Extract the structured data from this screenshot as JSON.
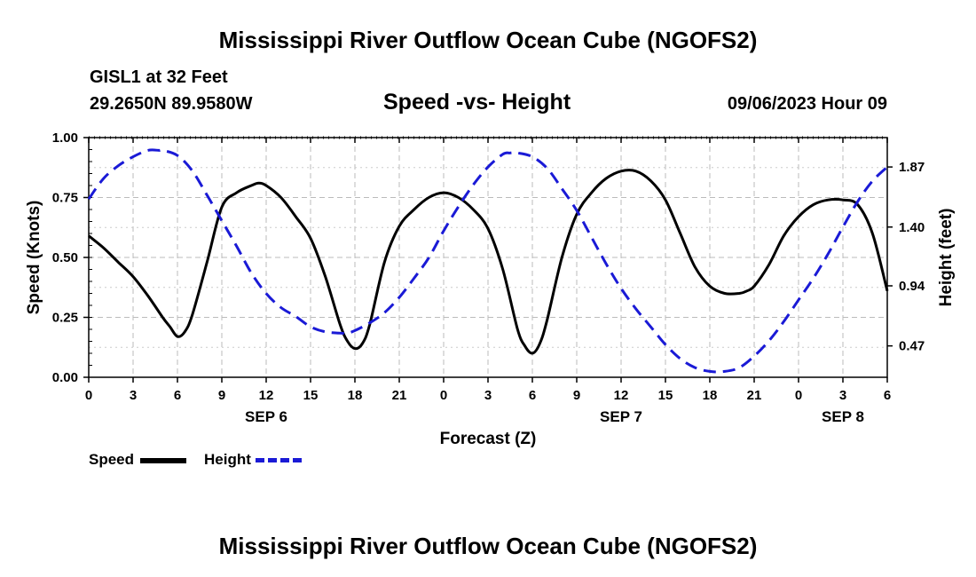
{
  "header": {
    "title": "Mississippi River Outflow Ocean Cube (NGOFS2)",
    "station": "GISL1 at 32 Feet",
    "coords": "29.2650N  89.9580W",
    "datetime": "09/06/2023 Hour 09",
    "footer_title": "Mississippi River Outflow Ocean Cube (NGOFS2)"
  },
  "legend": {
    "speed_label": "Speed",
    "height_label": "Height"
  },
  "colors": {
    "speed": "#000000",
    "height": "#1a1ad6",
    "grid": "#bbbbbb"
  },
  "chart_data": {
    "type": "line",
    "title": "Speed -vs- Height",
    "xlabel": "Forecast (Z)",
    "ylabel": "Speed (Knots)",
    "y2label": "Height (feet)",
    "xlim": [
      0,
      54
    ],
    "ylim": [
      0,
      1.0
    ],
    "y2lim": [
      0.2245,
      2.1
    ],
    "x_ticks": [
      0,
      3,
      6,
      9,
      12,
      15,
      18,
      21,
      24,
      27,
      30,
      33,
      36,
      39,
      42,
      45,
      48,
      51,
      54
    ],
    "x_tick_labels": [
      "0",
      "3",
      "6",
      "9",
      "12",
      "15",
      "18",
      "21",
      "0",
      "3",
      "6",
      "9",
      "12",
      "15",
      "18",
      "21",
      "0",
      "3",
      "6"
    ],
    "date_labels": [
      {
        "x": 12,
        "label": "SEP 6"
      },
      {
        "x": 36,
        "label": "SEP 7"
      },
      {
        "x": 51,
        "label": "SEP 8"
      }
    ],
    "y_ticks": [
      0.0,
      0.25,
      0.5,
      0.75,
      1.0
    ],
    "y_tick_labels": [
      "0.00",
      "0.25",
      "0.50",
      "0.75",
      "1.00"
    ],
    "y2_ticks": [
      0.47,
      0.94,
      1.4,
      1.87
    ],
    "y2_tick_labels": [
      "0.47",
      "0.94",
      "1.40",
      "1.87"
    ],
    "series": [
      {
        "name": "Speed",
        "axis": "left",
        "x": [
          0,
          1,
          2,
          3,
          4,
          5,
          5.5,
          6,
          6.5,
          7,
          8,
          9,
          10,
          11,
          11.5,
          12,
          13,
          14,
          15,
          16,
          17,
          17.5,
          18,
          18.5,
          19,
          20,
          21,
          22,
          23,
          24,
          25,
          26,
          27,
          28,
          29,
          29.5,
          30,
          30.5,
          31,
          32,
          33,
          34,
          35,
          36,
          37,
          38,
          39,
          40,
          41,
          42,
          43,
          44,
          44.5,
          45,
          46,
          47,
          48,
          49,
          50,
          51,
          52,
          53,
          54
        ],
        "y": [
          0.59,
          0.54,
          0.48,
          0.42,
          0.34,
          0.25,
          0.21,
          0.17,
          0.19,
          0.26,
          0.48,
          0.71,
          0.77,
          0.8,
          0.81,
          0.8,
          0.75,
          0.67,
          0.58,
          0.42,
          0.22,
          0.15,
          0.12,
          0.14,
          0.22,
          0.48,
          0.63,
          0.7,
          0.75,
          0.77,
          0.75,
          0.7,
          0.62,
          0.45,
          0.2,
          0.13,
          0.1,
          0.14,
          0.24,
          0.5,
          0.68,
          0.77,
          0.83,
          0.86,
          0.86,
          0.82,
          0.74,
          0.6,
          0.46,
          0.38,
          0.35,
          0.35,
          0.36,
          0.38,
          0.47,
          0.59,
          0.67,
          0.72,
          0.74,
          0.74,
          0.72,
          0.6,
          0.36
        ]
      },
      {
        "name": "Height",
        "axis": "right",
        "x": [
          0,
          1,
          2,
          3,
          4,
          4.75,
          5,
          6,
          7,
          8,
          9,
          10,
          11,
          12,
          13,
          14,
          15,
          16,
          17,
          17.5,
          18,
          19,
          20,
          21,
          22,
          23,
          24,
          25,
          26,
          27,
          28,
          28.5,
          29,
          30,
          31,
          32,
          33,
          34,
          35,
          36,
          37,
          38,
          39,
          40,
          41,
          42,
          43,
          44,
          45,
          46,
          47,
          48,
          49,
          50,
          51,
          52,
          53,
          54
        ],
        "y": [
          1.62,
          1.78,
          1.88,
          1.95,
          2.0,
          2.0,
          2.0,
          1.96,
          1.84,
          1.65,
          1.45,
          1.25,
          1.04,
          0.88,
          0.77,
          0.7,
          0.62,
          0.58,
          0.57,
          0.57,
          0.59,
          0.65,
          0.73,
          0.85,
          1.0,
          1.16,
          1.37,
          1.56,
          1.73,
          1.87,
          1.97,
          1.98,
          1.98,
          1.95,
          1.86,
          1.7,
          1.53,
          1.32,
          1.11,
          0.92,
          0.76,
          0.62,
          0.48,
          0.37,
          0.3,
          0.27,
          0.27,
          0.3,
          0.39,
          0.51,
          0.66,
          0.83,
          1.0,
          1.19,
          1.4,
          1.6,
          1.76,
          1.87
        ]
      }
    ]
  }
}
